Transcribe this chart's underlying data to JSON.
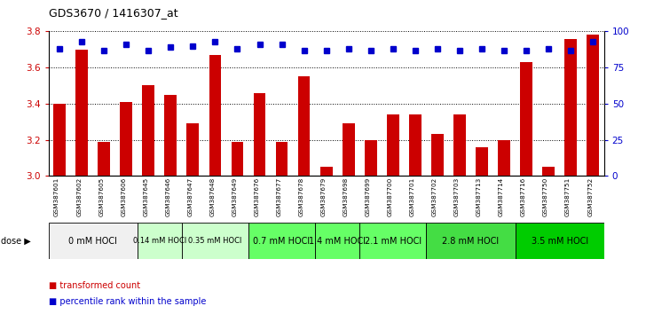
{
  "title": "GDS3670 / 1416307_at",
  "samples": [
    "GSM387601",
    "GSM387602",
    "GSM387605",
    "GSM387606",
    "GSM387645",
    "GSM387646",
    "GSM387647",
    "GSM387648",
    "GSM387649",
    "GSM387676",
    "GSM387677",
    "GSM387678",
    "GSM387679",
    "GSM387698",
    "GSM387699",
    "GSM387700",
    "GSM387701",
    "GSM387702",
    "GSM387703",
    "GSM387713",
    "GSM387714",
    "GSM387716",
    "GSM387750",
    "GSM387751",
    "GSM387752"
  ],
  "bar_values": [
    3.4,
    3.7,
    3.19,
    3.41,
    3.5,
    3.45,
    3.29,
    3.67,
    3.19,
    3.46,
    3.19,
    3.55,
    3.05,
    3.29,
    3.2,
    3.34,
    3.34,
    3.23,
    3.34,
    3.16,
    3.2,
    3.63,
    3.05,
    3.76,
    3.78
  ],
  "percentile_values": [
    88,
    93,
    87,
    91,
    87,
    89,
    90,
    93,
    88,
    91,
    91,
    87,
    87,
    88,
    87,
    88,
    87,
    88,
    87,
    88,
    87,
    87,
    88,
    87,
    93
  ],
  "ylim_left": [
    3.0,
    3.8
  ],
  "ylim_right": [
    0,
    100
  ],
  "yticks_left": [
    3.0,
    3.2,
    3.4,
    3.6,
    3.8
  ],
  "yticks_right": [
    0,
    25,
    50,
    75,
    100
  ],
  "bar_color": "#cc0000",
  "dot_color": "#0000cc",
  "groups": [
    {
      "label": "0 mM HOCl",
      "start": 0,
      "end": 4,
      "color": "#f0f0f0",
      "fontsize": 7
    },
    {
      "label": "0.14 mM HOCl",
      "start": 4,
      "end": 6,
      "color": "#ccffcc",
      "fontsize": 6
    },
    {
      "label": "0.35 mM HOCl",
      "start": 6,
      "end": 9,
      "color": "#ccffcc",
      "fontsize": 6
    },
    {
      "label": "0.7 mM HOCl",
      "start": 9,
      "end": 12,
      "color": "#66ff66",
      "fontsize": 7
    },
    {
      "label": "1.4 mM HOCl",
      "start": 12,
      "end": 14,
      "color": "#66ff66",
      "fontsize": 7
    },
    {
      "label": "2.1 mM HOCl",
      "start": 14,
      "end": 17,
      "color": "#66ff66",
      "fontsize": 7
    },
    {
      "label": "2.8 mM HOCl",
      "start": 17,
      "end": 21,
      "color": "#44dd44",
      "fontsize": 7
    },
    {
      "label": "3.5 mM HOCl",
      "start": 21,
      "end": 25,
      "color": "#00cc00",
      "fontsize": 7
    }
  ],
  "legend_bar": "transformed count",
  "legend_dot": "percentile rank within the sample",
  "background_color": "#ffffff"
}
